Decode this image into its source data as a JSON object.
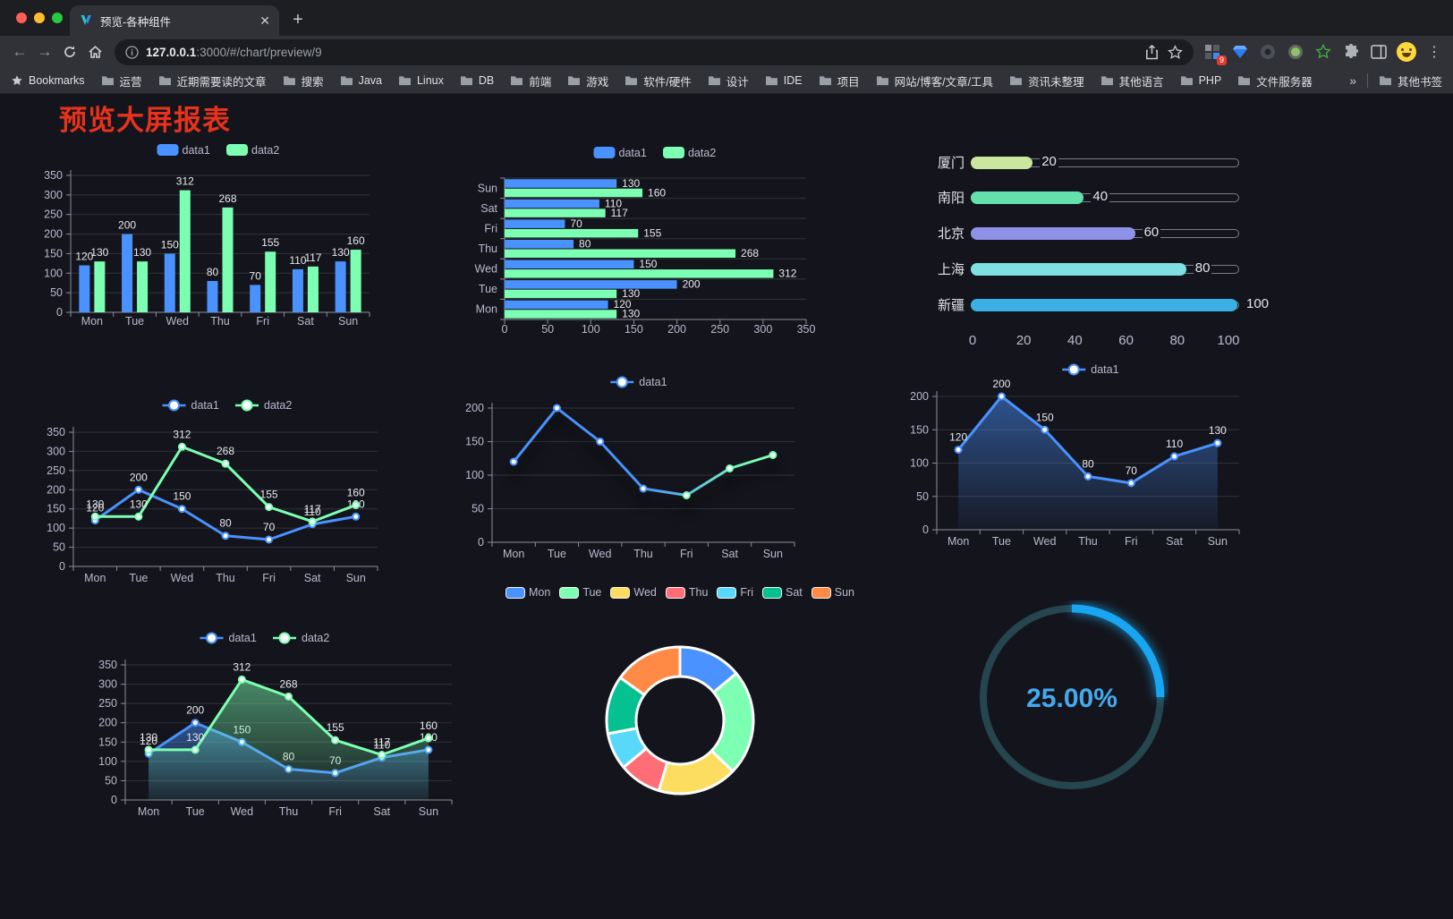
{
  "browser": {
    "tab": {
      "title": "预览-各种组件"
    },
    "url": {
      "host": "127.0.0.1",
      "rest": ":3000/#/chart/preview/9"
    },
    "extension_badge": "9",
    "bookmarks_label": "Bookmarks",
    "bookmark_folders": [
      "运营",
      "近期需要读的文章",
      "搜索",
      "Java",
      "Linux",
      "DB",
      "前端",
      "游戏",
      "软件/硬件",
      "设计",
      "IDE",
      "项目",
      "网站/博客/文章/工具",
      "资讯未整理",
      "其他语言",
      "PHP",
      "文件服务器"
    ],
    "bookmarks_overflow": "»",
    "other_bookmarks": "其他书签"
  },
  "page": {
    "title": "预览大屏报表",
    "title_color": "#e8321c"
  },
  "palette": {
    "blue": "#4992ff",
    "green": "#7cffb2",
    "yellow": "#fddd60",
    "red": "#ff6e76",
    "cyan": "#58d9f9",
    "teal": "#05c091",
    "orange": "#ff8a45",
    "axis_text": "#b9b8ce",
    "grid_line": "rgba(255,255,255,0.13)",
    "axis_line": "#8b8d97",
    "value_label": "#e8e8ec"
  },
  "chart_data": [
    {
      "id": "grouped-bar",
      "type": "bar",
      "categories": [
        "Mon",
        "Tue",
        "Wed",
        "Thu",
        "Fri",
        "Sat",
        "Sun"
      ],
      "series": [
        {
          "name": "data1",
          "color": "#4992ff",
          "values": [
            120,
            200,
            150,
            80,
            70,
            110,
            130
          ]
        },
        {
          "name": "data2",
          "color": "#7cffb2",
          "values": [
            130,
            130,
            312,
            268,
            155,
            117,
            160
          ]
        }
      ],
      "ylim": [
        0,
        350
      ],
      "ystep": 50,
      "show_labels": true,
      "legend_position": "top",
      "grid": true
    },
    {
      "id": "horizontal-bar",
      "type": "bar",
      "horizontal": true,
      "categories": [
        "Sun",
        "Sat",
        "Fri",
        "Thu",
        "Wed",
        "Tue",
        "Mon"
      ],
      "series": [
        {
          "name": "data1",
          "color": "#4992ff",
          "values": [
            130,
            110,
            70,
            80,
            150,
            200,
            120
          ]
        },
        {
          "name": "data2",
          "color": "#7cffb2",
          "values": [
            160,
            117,
            155,
            268,
            312,
            130,
            130
          ]
        }
      ],
      "xlim": [
        0,
        350
      ],
      "xstep": 50,
      "show_labels": true,
      "legend_position": "top"
    },
    {
      "id": "progress-bars",
      "type": "bar",
      "variant": "progress",
      "max": 100,
      "xticks": [
        0,
        20,
        40,
        60,
        80,
        100
      ],
      "items": [
        {
          "label": "厦门",
          "value": 20,
          "color": "#cbe79f"
        },
        {
          "label": "南阳",
          "value": 40,
          "color": "#63e0ac"
        },
        {
          "label": "北京",
          "value": 60,
          "color": "#8e91e8"
        },
        {
          "label": "上海",
          "value": 80,
          "color": "#7ee0e0"
        },
        {
          "label": "新疆",
          "value": 100,
          "color": "#3bb0e4"
        }
      ]
    },
    {
      "id": "double-line",
      "type": "line",
      "categories": [
        "Mon",
        "Tue",
        "Wed",
        "Thu",
        "Fri",
        "Sat",
        "Sun"
      ],
      "series": [
        {
          "name": "data1",
          "color": "#4992ff",
          "values": [
            120,
            200,
            150,
            80,
            70,
            110,
            130
          ]
        },
        {
          "name": "data2",
          "color": "#7cffb2",
          "values": [
            130,
            130,
            312,
            268,
            155,
            117,
            160
          ]
        }
      ],
      "ylim": [
        0,
        350
      ],
      "ystep": 50,
      "show_labels": true,
      "legend_position": "top"
    },
    {
      "id": "gradient-line",
      "type": "line",
      "categories": [
        "Mon",
        "Tue",
        "Wed",
        "Thu",
        "Fri",
        "Sat",
        "Sun"
      ],
      "series": [
        {
          "name": "data1",
          "color": "#4992ff",
          "color2": "#7cffb2",
          "gradient": true,
          "shadow": true,
          "values": [
            120,
            200,
            150,
            80,
            70,
            110,
            130
          ]
        }
      ],
      "ylim": [
        0,
        200
      ],
      "ystep": 50,
      "show_labels": false,
      "legend_position": "top"
    },
    {
      "id": "area-line",
      "type": "area",
      "categories": [
        "Mon",
        "Tue",
        "Wed",
        "Thu",
        "Fri",
        "Sat",
        "Sun"
      ],
      "series": [
        {
          "name": "data1",
          "color": "#4992ff",
          "area": true,
          "values": [
            120,
            200,
            150,
            80,
            70,
            110,
            130
          ]
        }
      ],
      "ylim": [
        0,
        200
      ],
      "ystep": 50,
      "show_labels": true,
      "legend_position": "top"
    },
    {
      "id": "double-area",
      "type": "area",
      "categories": [
        "Mon",
        "Tue",
        "Wed",
        "Thu",
        "Fri",
        "Sat",
        "Sun"
      ],
      "series": [
        {
          "name": "data1",
          "color": "#4992ff",
          "area": true,
          "values": [
            120,
            200,
            150,
            80,
            70,
            110,
            130
          ]
        },
        {
          "name": "data2",
          "color": "#7cffb2",
          "area": true,
          "values": [
            130,
            130,
            312,
            268,
            155,
            117,
            160
          ]
        }
      ],
      "ylim": [
        0,
        350
      ],
      "ystep": 50,
      "show_labels": true,
      "legend_position": "top"
    },
    {
      "id": "donut",
      "type": "pie",
      "inner_radius": true,
      "legend_position": "top",
      "categories": [
        "Mon",
        "Tue",
        "Wed",
        "Thu",
        "Fri",
        "Sat",
        "Sun"
      ],
      "values": [
        120,
        200,
        150,
        80,
        70,
        110,
        130
      ],
      "colors": [
        "#4992ff",
        "#7cffb2",
        "#fddd60",
        "#ff6e76",
        "#58d9f9",
        "#05c091",
        "#ff8a45"
      ]
    },
    {
      "id": "gauge",
      "type": "gauge",
      "value": 25,
      "display": "25.00%",
      "color": "#18a6f2",
      "track_color": "#25454f",
      "text_color": "#44a9ee"
    }
  ]
}
